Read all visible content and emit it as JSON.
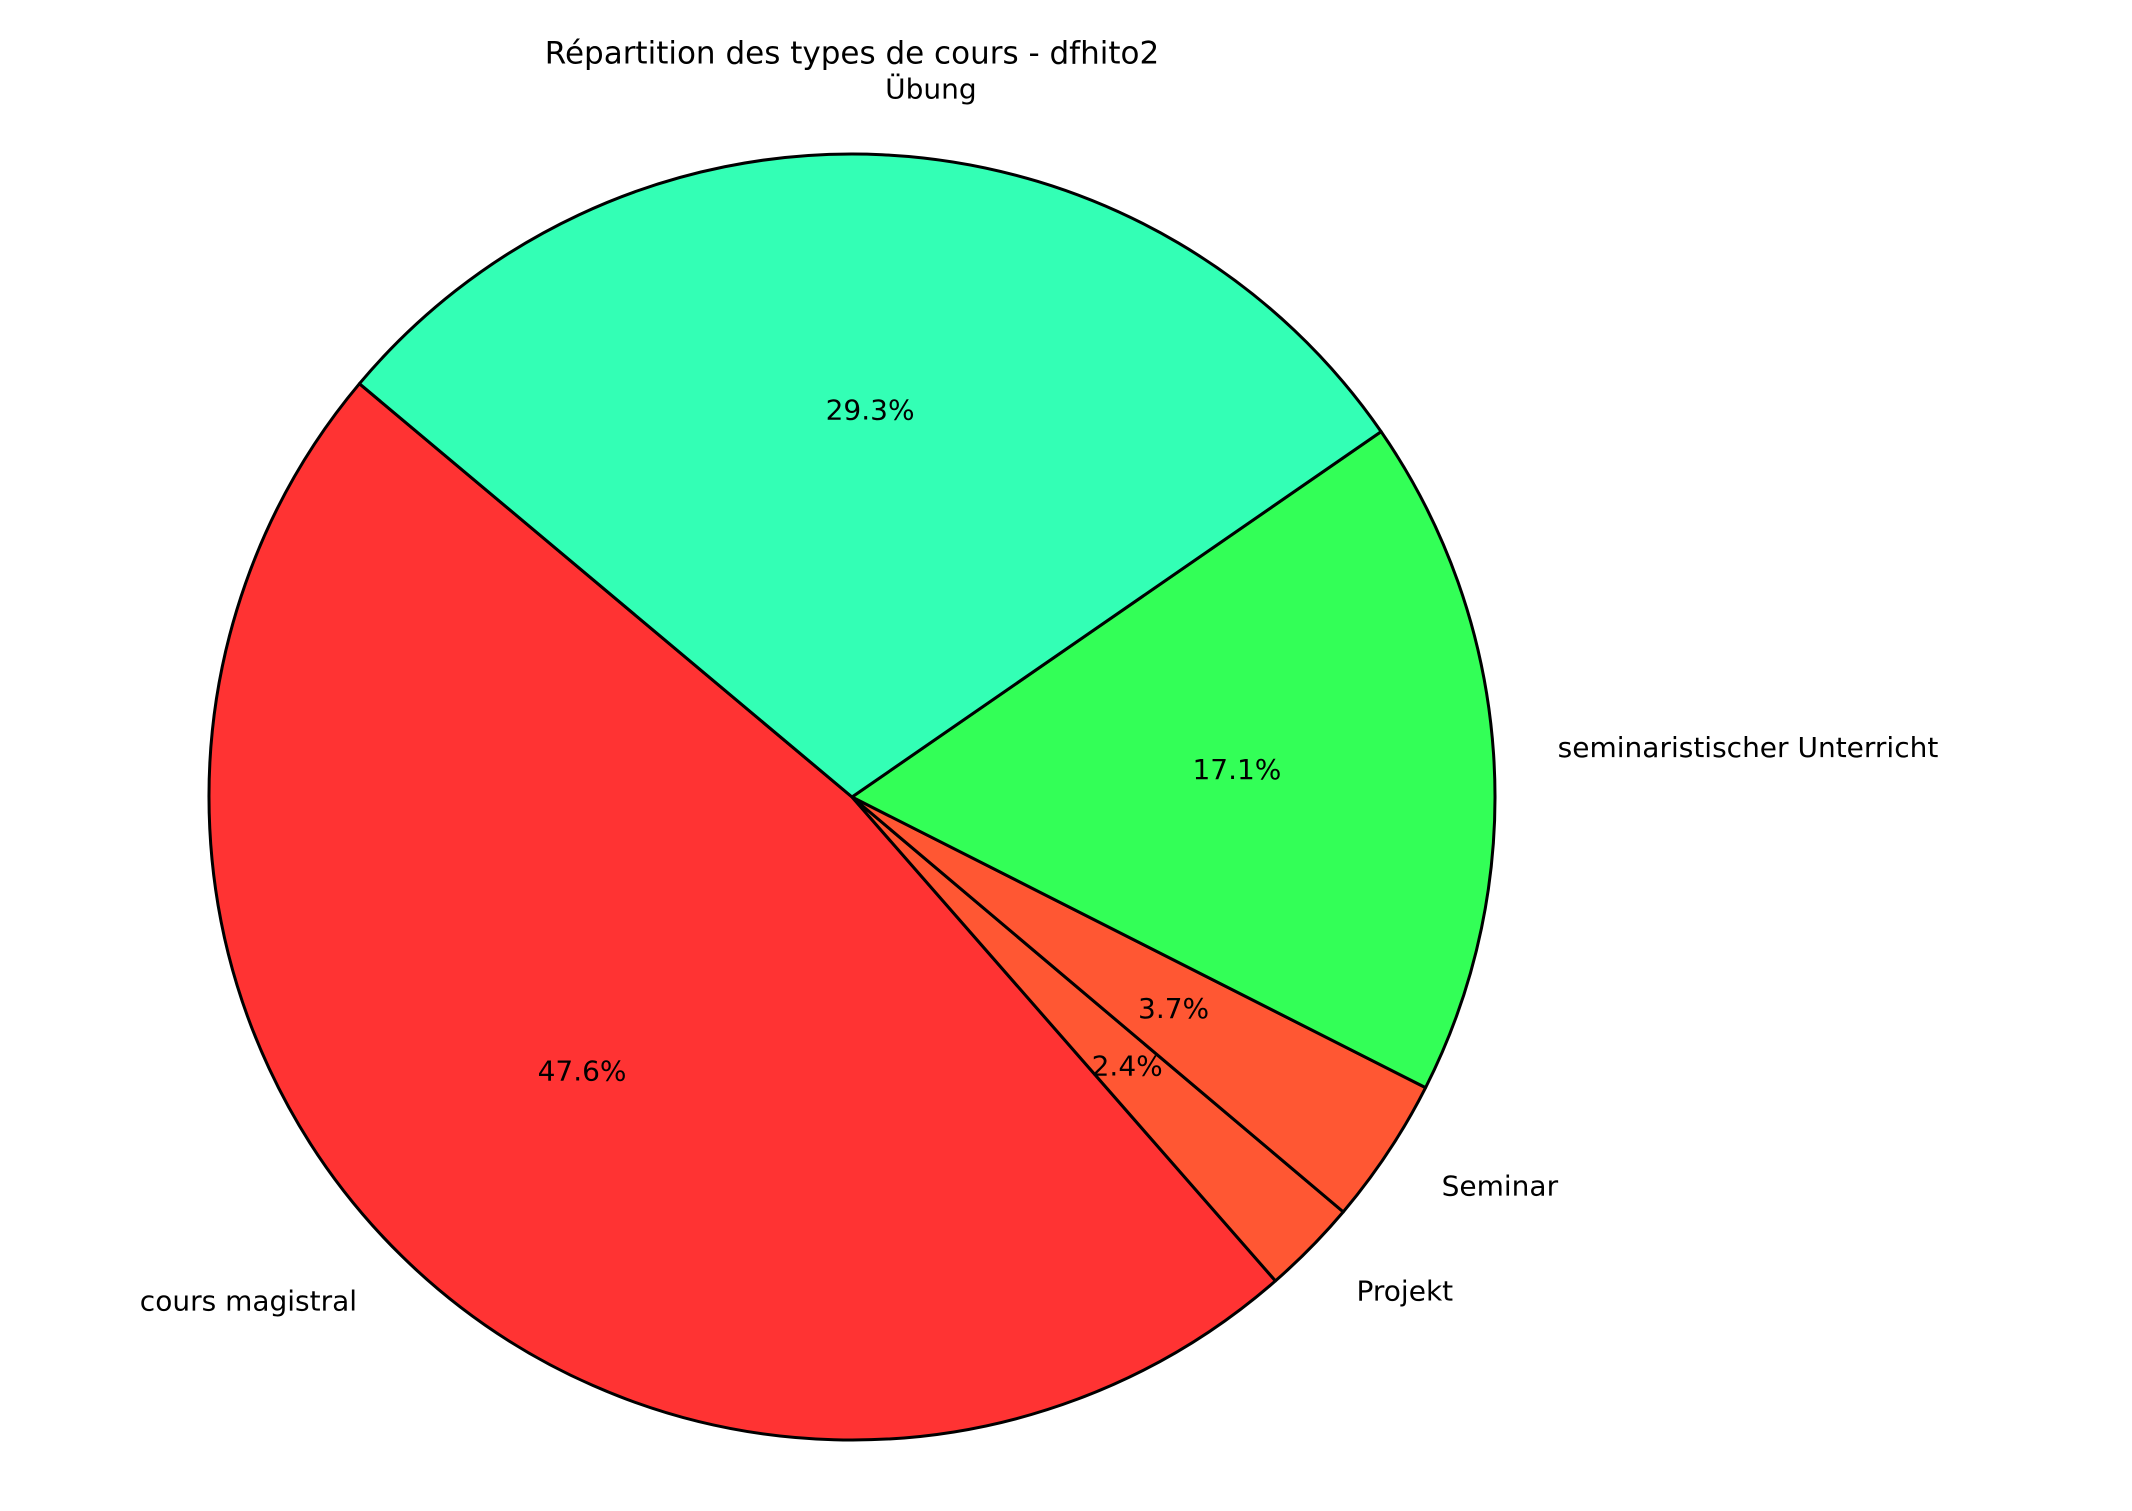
{
  "chart_data": {
    "type": "pie",
    "title": "Répartition des types de cours - dfhito2",
    "categories": [
      "cours magistral",
      "Projekt",
      "Seminar",
      "seminaristischer Unterricht",
      "Übung"
    ],
    "values": [
      47.6,
      2.4,
      3.7,
      17.1,
      29.3
    ],
    "value_labels": [
      "47.6%",
      "2.4%",
      "3.7%",
      "17.1%",
      "29.3%"
    ],
    "colors": [
      "#ff3333",
      "#ff5733",
      "#ff5733",
      "#33ff57",
      "#33ffb5"
    ]
  }
}
